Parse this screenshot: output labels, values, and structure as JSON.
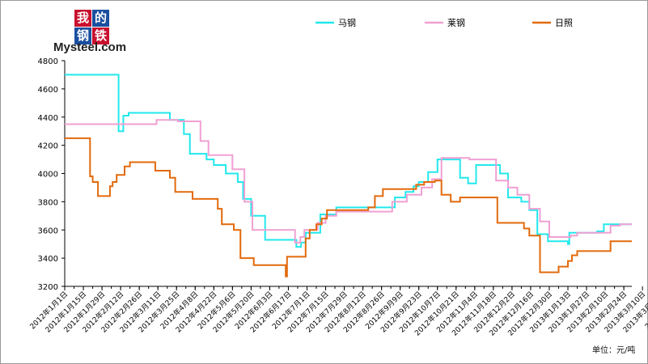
{
  "logo": {
    "chars": [
      "我",
      "的",
      "钢",
      "铁"
    ],
    "colors": [
      "#c8102e",
      "#1a4fa0",
      "#1a4fa0",
      "#c8102e"
    ],
    "text": "Mysteel.com"
  },
  "unit_label": "单位：元/吨",
  "chart_data": {
    "type": "line",
    "ylim": [
      3200,
      4800
    ],
    "y_ticks": [
      3200,
      3400,
      3600,
      3800,
      4000,
      4200,
      4400,
      4600,
      4800
    ],
    "grid": false,
    "legend_position": "top",
    "x_tick_labels": [
      "2012年1月1日",
      "2012年1月15日",
      "2012年1月29日",
      "2012年2月12日",
      "2012年2月26日",
      "2012年3月11日",
      "2012年3月25日",
      "2012年4月8日",
      "2012年4月22日",
      "2012年5月6日",
      "2012年5月20日",
      "2012年6月3日",
      "2012年6月17日",
      "2012年7月1日",
      "2012年7月15日",
      "2012年7月29日",
      "2012年8月12日",
      "2012年8月26日",
      "2012年9月9日",
      "2012年9月23日",
      "2012年10月7日",
      "2012年10月21日",
      "2012年11月4日",
      "2012年11月18日",
      "2012年12月2日",
      "2012年12月16日",
      "2012年12月30日",
      "2013年1月13日",
      "2013年1月27日",
      "2013年2月10日",
      "2013年2月24日",
      "2013年3月10日",
      "2013年3月24日",
      "2013年4月7日",
      "2013年4月21日",
      "2013年5月5日",
      "2013年5月19日",
      "2013年6月2日",
      "2013年6月16日",
      "2013年6月30日",
      "2013年7月14日",
      "2013年7月28日",
      "2013年8月11日",
      "2013年8月25日",
      "2013年9月8日"
    ],
    "series": [
      {
        "name": "马钢",
        "color": "#22e8ec",
        "points": [
          [
            0,
            4700
          ],
          [
            40.5,
            4700
          ],
          [
            40.5,
            4300
          ],
          [
            44,
            4300
          ],
          [
            44,
            4410
          ],
          [
            48,
            4410
          ],
          [
            48,
            4430
          ],
          [
            79,
            4430
          ],
          [
            79,
            4380
          ],
          [
            89.5,
            4380
          ],
          [
            89.5,
            4280
          ],
          [
            94,
            4280
          ],
          [
            94,
            4140
          ],
          [
            106.5,
            4140
          ],
          [
            106.5,
            4100
          ],
          [
            112,
            4100
          ],
          [
            112,
            4060
          ],
          [
            121,
            4060
          ],
          [
            121,
            4000
          ],
          [
            130,
            4000
          ],
          [
            130,
            3940
          ],
          [
            134,
            3940
          ],
          [
            134,
            3820
          ],
          [
            140,
            3820
          ],
          [
            140,
            3700
          ],
          [
            150.5,
            3700
          ],
          [
            150.5,
            3530
          ],
          [
            174,
            3530
          ],
          [
            174,
            3480
          ],
          [
            177.5,
            3480
          ],
          [
            177.5,
            3510
          ],
          [
            181,
            3510
          ],
          [
            181,
            3580
          ],
          [
            192,
            3580
          ],
          [
            192,
            3710
          ],
          [
            204,
            3710
          ],
          [
            204,
            3760
          ],
          [
            248,
            3760
          ],
          [
            248,
            3830
          ],
          [
            256,
            3830
          ],
          [
            256,
            3870
          ],
          [
            262,
            3870
          ],
          [
            262,
            3910
          ],
          [
            266,
            3910
          ],
          [
            266,
            3940
          ],
          [
            273,
            3940
          ],
          [
            273,
            4010
          ],
          [
            280,
            4010
          ],
          [
            280,
            4100
          ],
          [
            297,
            4100
          ],
          [
            297,
            3970
          ],
          [
            303,
            3970
          ],
          [
            303,
            3930
          ],
          [
            309,
            3930
          ],
          [
            309,
            4060
          ],
          [
            327,
            4060
          ],
          [
            327,
            4000
          ],
          [
            333,
            4000
          ],
          [
            333,
            3830
          ],
          [
            343,
            3830
          ],
          [
            343,
            3800
          ],
          [
            349,
            3800
          ],
          [
            349,
            3740
          ],
          [
            355,
            3740
          ],
          [
            355,
            3570
          ],
          [
            363,
            3570
          ],
          [
            363,
            3520
          ],
          [
            378,
            3520
          ],
          [
            378,
            3500
          ],
          [
            379,
            3500
          ],
          [
            379,
            3580
          ],
          [
            400,
            3580
          ],
          [
            400,
            3590
          ],
          [
            405,
            3590
          ],
          [
            405,
            3640
          ],
          [
            426,
            3640
          ]
        ]
      },
      {
        "name": "莱钢",
        "color": "#f0a0d2",
        "points": [
          [
            0,
            4350
          ],
          [
            69,
            4350
          ],
          [
            69,
            4380
          ],
          [
            85,
            4380
          ],
          [
            85,
            4370
          ],
          [
            102,
            4370
          ],
          [
            102,
            4230
          ],
          [
            108,
            4230
          ],
          [
            108,
            4130
          ],
          [
            126,
            4130
          ],
          [
            126,
            4030
          ],
          [
            135,
            4030
          ],
          [
            135,
            3800
          ],
          [
            141,
            3800
          ],
          [
            141,
            3600
          ],
          [
            173,
            3600
          ],
          [
            173,
            3510
          ],
          [
            177,
            3510
          ],
          [
            177,
            3550
          ],
          [
            180,
            3550
          ],
          [
            180,
            3600
          ],
          [
            190,
            3600
          ],
          [
            190,
            3650
          ],
          [
            196,
            3650
          ],
          [
            196,
            3700
          ],
          [
            204,
            3700
          ],
          [
            204,
            3730
          ],
          [
            246,
            3730
          ],
          [
            246,
            3800
          ],
          [
            257,
            3800
          ],
          [
            257,
            3850
          ],
          [
            268,
            3850
          ],
          [
            268,
            3900
          ],
          [
            276,
            3900
          ],
          [
            276,
            3960
          ],
          [
            283,
            3960
          ],
          [
            283,
            4110
          ],
          [
            304,
            4110
          ],
          [
            304,
            4100
          ],
          [
            324,
            4100
          ],
          [
            324,
            3950
          ],
          [
            333,
            3950
          ],
          [
            333,
            3900
          ],
          [
            340,
            3900
          ],
          [
            340,
            3850
          ],
          [
            349,
            3850
          ],
          [
            349,
            3750
          ],
          [
            357,
            3750
          ],
          [
            357,
            3660
          ],
          [
            364,
            3660
          ],
          [
            364,
            3550
          ],
          [
            380,
            3550
          ],
          [
            380,
            3560
          ],
          [
            385,
            3560
          ],
          [
            385,
            3580
          ],
          [
            410,
            3580
          ],
          [
            410,
            3630
          ],
          [
            417,
            3630
          ],
          [
            417,
            3640
          ],
          [
            426,
            3640
          ]
        ]
      },
      {
        "name": "日照",
        "color": "#e26a0c",
        "points": [
          [
            0,
            4250
          ],
          [
            19,
            4250
          ],
          [
            19,
            3980
          ],
          [
            21,
            3980
          ],
          [
            21,
            3940
          ],
          [
            25,
            3940
          ],
          [
            25,
            3840
          ],
          [
            34,
            3840
          ],
          [
            34,
            3910
          ],
          [
            36,
            3910
          ],
          [
            36,
            3940
          ],
          [
            39,
            3940
          ],
          [
            39,
            3990
          ],
          [
            45,
            3990
          ],
          [
            45,
            4050
          ],
          [
            49,
            4050
          ],
          [
            49,
            4080
          ],
          [
            68,
            4080
          ],
          [
            68,
            4020
          ],
          [
            79,
            4020
          ],
          [
            79,
            3970
          ],
          [
            83,
            3970
          ],
          [
            83,
            3870
          ],
          [
            96,
            3870
          ],
          [
            96,
            3820
          ],
          [
            115,
            3820
          ],
          [
            115,
            3750
          ],
          [
            118,
            3750
          ],
          [
            118,
            3640
          ],
          [
            127,
            3640
          ],
          [
            127,
            3600
          ],
          [
            132,
            3600
          ],
          [
            132,
            3400
          ],
          [
            142,
            3400
          ],
          [
            142,
            3350
          ],
          [
            166,
            3350
          ],
          [
            166,
            3270
          ],
          [
            167,
            3270
          ],
          [
            167,
            3410
          ],
          [
            181,
            3410
          ],
          [
            181,
            3540
          ],
          [
            184,
            3540
          ],
          [
            184,
            3600
          ],
          [
            189,
            3600
          ],
          [
            189,
            3640
          ],
          [
            193,
            3640
          ],
          [
            193,
            3680
          ],
          [
            197,
            3680
          ],
          [
            197,
            3740
          ],
          [
            228,
            3740
          ],
          [
            228,
            3760
          ],
          [
            233,
            3760
          ],
          [
            233,
            3840
          ],
          [
            239,
            3840
          ],
          [
            239,
            3890
          ],
          [
            264,
            3890
          ],
          [
            264,
            3920
          ],
          [
            270,
            3920
          ],
          [
            270,
            3940
          ],
          [
            278,
            3940
          ],
          [
            278,
            3950
          ],
          [
            283,
            3950
          ],
          [
            283,
            3850
          ],
          [
            290,
            3850
          ],
          [
            290,
            3800
          ],
          [
            297,
            3800
          ],
          [
            297,
            3830
          ],
          [
            325,
            3830
          ],
          [
            325,
            3650
          ],
          [
            345,
            3650
          ],
          [
            345,
            3610
          ],
          [
            349,
            3610
          ],
          [
            349,
            3560
          ],
          [
            357,
            3560
          ],
          [
            357,
            3300
          ],
          [
            371,
            3300
          ],
          [
            371,
            3340
          ],
          [
            378,
            3340
          ],
          [
            378,
            3380
          ],
          [
            381,
            3380
          ],
          [
            381,
            3420
          ],
          [
            385,
            3420
          ],
          [
            385,
            3450
          ],
          [
            410,
            3450
          ],
          [
            410,
            3520
          ],
          [
            426,
            3520
          ]
        ]
      }
    ]
  }
}
